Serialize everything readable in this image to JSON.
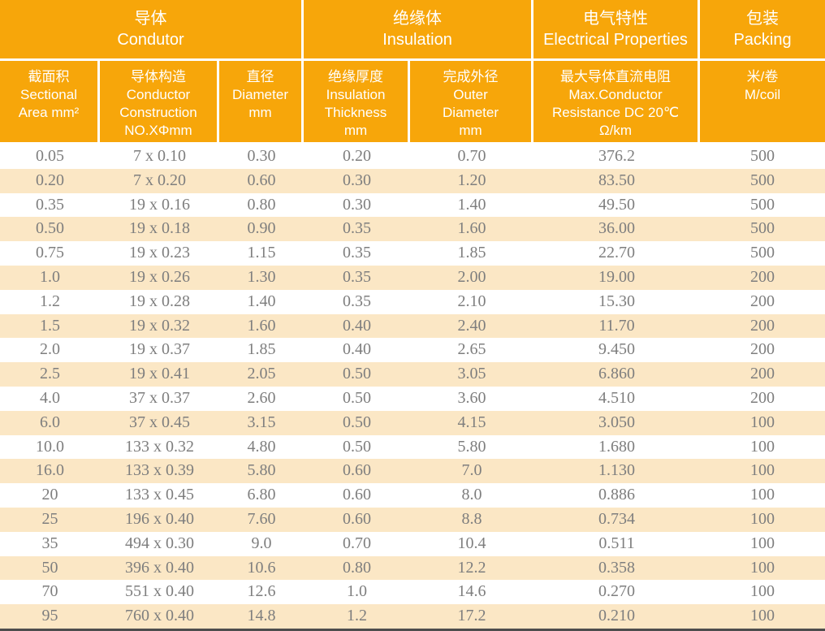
{
  "colors": {
    "header_orange": "#F7A60A",
    "row_cream": "#FBE7C5",
    "row_white": "#FFFFFF",
    "header_text": "#FFFFFF",
    "data_text": "#7E7E7E",
    "bottom_rule": "#4D4D4D"
  },
  "table": {
    "groups": [
      {
        "zh": "导体",
        "en": "Condutor"
      },
      {
        "zh": "绝缘体",
        "en": "Insulation"
      },
      {
        "zh": "电气特性",
        "en": "Electrical Properties"
      },
      {
        "zh": "包装",
        "en": "Packing"
      }
    ],
    "columns": [
      {
        "lines": [
          "截面积",
          "Sectional",
          "Area mm²"
        ]
      },
      {
        "lines": [
          "导体构造",
          "Conductor",
          "Construction",
          "NO.XΦmm"
        ]
      },
      {
        "lines": [
          "直径",
          "Diameter",
          "mm"
        ]
      },
      {
        "lines": [
          "绝缘厚度",
          "Insulation",
          "Thickness",
          "mm"
        ]
      },
      {
        "lines": [
          "完成外径",
          "Outer",
          "Diameter",
          "mm"
        ]
      },
      {
        "lines": [
          "最大导体直流电阻",
          "Max.Conductor",
          "Resistance DC 20℃",
          "Ω/km"
        ]
      },
      {
        "lines": [
          "米/卷",
          "M/coil"
        ]
      }
    ],
    "rows": [
      [
        "0.05",
        "7 x 0.10",
        "0.30",
        "0.20",
        "0.70",
        "376.2",
        "500"
      ],
      [
        "0.20",
        "7 x 0.20",
        "0.60",
        "0.30",
        "1.20",
        "83.50",
        "500"
      ],
      [
        "0.35",
        "19 x 0.16",
        "0.80",
        "0.30",
        "1.40",
        "49.50",
        "500"
      ],
      [
        "0.50",
        "19 x 0.18",
        "0.90",
        "0.35",
        "1.60",
        "36.00",
        "500"
      ],
      [
        "0.75",
        "19 x 0.23",
        "1.15",
        "0.35",
        "1.85",
        "22.70",
        "500"
      ],
      [
        "1.0",
        "19 x 0.26",
        "1.30",
        "0.35",
        "2.00",
        "19.00",
        "200"
      ],
      [
        "1.2",
        "19 x 0.28",
        "1.40",
        "0.35",
        "2.10",
        "15.30",
        "200"
      ],
      [
        "1.5",
        "19 x 0.32",
        "1.60",
        "0.40",
        "2.40",
        "11.70",
        "200"
      ],
      [
        "2.0",
        "19 x 0.37",
        "1.85",
        "0.40",
        "2.65",
        "9.450",
        "200"
      ],
      [
        "2.5",
        "19 x 0.41",
        "2.05",
        "0.50",
        "3.05",
        "6.860",
        "200"
      ],
      [
        "4.0",
        "37 x 0.37",
        "2.60",
        "0.50",
        "3.60",
        "4.510",
        "200"
      ],
      [
        "6.0",
        "37 x 0.45",
        "3.15",
        "0.50",
        "4.15",
        "3.050",
        "100"
      ],
      [
        "10.0",
        "133 x 0.32",
        "4.80",
        "0.50",
        "5.80",
        "1.680",
        "100"
      ],
      [
        "16.0",
        "133 x 0.39",
        "5.80",
        "0.60",
        "7.0",
        "1.130",
        "100"
      ],
      [
        "20",
        "133 x 0.45",
        "6.80",
        "0.60",
        "8.0",
        "0.886",
        "100"
      ],
      [
        "25",
        "196 x 0.40",
        "7.60",
        "0.60",
        "8.8",
        "0.734",
        "100"
      ],
      [
        "35",
        "494 x 0.30",
        "9.0",
        "0.70",
        "10.4",
        "0.511",
        "100"
      ],
      [
        "50",
        "396 x 0.40",
        "10.6",
        "0.80",
        "12.2",
        "0.358",
        "100"
      ],
      [
        "70",
        "551 x 0.40",
        "12.6",
        "1.0",
        "14.6",
        "0.270",
        "100"
      ],
      [
        "95",
        "760 x 0.40",
        "14.8",
        "1.2",
        "17.2",
        "0.210",
        "100"
      ]
    ]
  }
}
